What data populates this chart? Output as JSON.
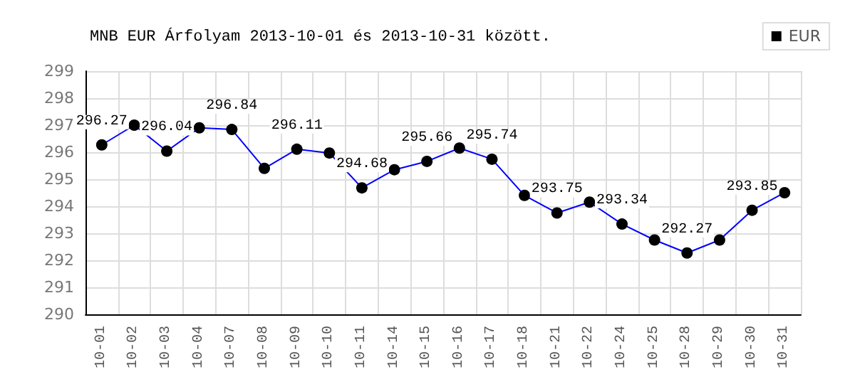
{
  "chart_data": {
    "type": "line",
    "title": "MNB EUR Árfolyam 2013-10-01 és 2013-10-31 között.",
    "categories": [
      "10-01",
      "10-02",
      "10-03",
      "10-04",
      "10-07",
      "10-08",
      "10-09",
      "10-10",
      "10-11",
      "10-14",
      "10-15",
      "10-16",
      "10-17",
      "10-18",
      "10-21",
      "10-22",
      "10-24",
      "10-25",
      "10-28",
      "10-29",
      "10-30",
      "10-31"
    ],
    "series": [
      {
        "name": "EUR",
        "color": "#0000ff",
        "values": [
          296.27,
          297.0,
          296.04,
          296.9,
          296.84,
          295.4,
          296.11,
          295.97,
          294.68,
          295.35,
          295.66,
          296.15,
          295.74,
          294.4,
          293.75,
          294.15,
          293.34,
          292.75,
          292.27,
          292.75,
          293.85,
          294.5
        ],
        "value_labels": [
          "296.27",
          null,
          "296.04",
          null,
          "296.84",
          null,
          "296.11",
          null,
          "294.68",
          null,
          "295.66",
          null,
          "295.74",
          null,
          "293.75",
          null,
          "293.34",
          null,
          "292.27",
          null,
          "293.85",
          null
        ]
      }
    ],
    "ylim": [
      290,
      299
    ],
    "yticks": [
      290,
      291,
      292,
      293,
      294,
      295,
      296,
      297,
      298,
      299
    ],
    "grid": true,
    "legend": "top right",
    "marker": "circle",
    "line_style": "solid"
  }
}
